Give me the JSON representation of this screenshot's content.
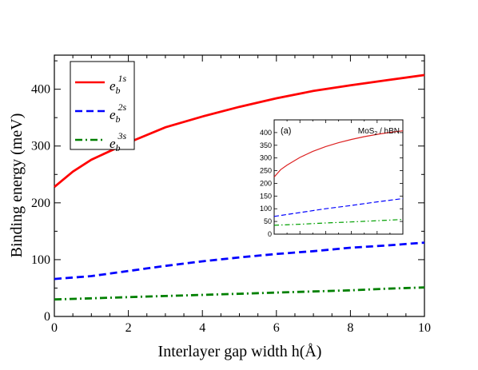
{
  "chart_data": [
    {
      "type": "line",
      "xlabel": "Interlayer gap width h(Å)",
      "ylabel": "Binding energy (meV)",
      "xlim": [
        0,
        10
      ],
      "ylim": [
        0,
        460
      ],
      "xticks": [
        0,
        2,
        4,
        6,
        8,
        10
      ],
      "yticks": [
        0,
        100,
        200,
        300,
        400
      ],
      "legend": "top-left",
      "grid": false,
      "series": [
        {
          "name": "e_b^1s",
          "base": "e",
          "sub": "b",
          "sup": "1s",
          "color": "#ff0000",
          "style": "solid",
          "x": [
            0,
            0.5,
            1,
            2,
            3,
            4,
            5,
            6,
            7,
            8,
            9,
            10
          ],
          "y": [
            228,
            255,
            276,
            306,
            333,
            352,
            369,
            384,
            397,
            407,
            416,
            425
          ]
        },
        {
          "name": "e_b^2s",
          "base": "e",
          "sub": "b",
          "sup": "2s",
          "color": "#0000ff",
          "style": "dashed",
          "x": [
            0,
            1,
            2,
            3,
            4,
            5,
            6,
            7,
            8,
            9,
            10
          ],
          "y": [
            66,
            71,
            80,
            89,
            97,
            104,
            110,
            115,
            121,
            125,
            130
          ]
        },
        {
          "name": "e_b^3s",
          "base": "e",
          "sub": "b",
          "sup": "3s",
          "color": "#008000",
          "style": "dashdot",
          "x": [
            0,
            1,
            2,
            3,
            4,
            5,
            6,
            7,
            8,
            9,
            10
          ],
          "y": [
            30,
            32,
            34,
            36,
            38,
            40,
            42,
            44,
            46,
            49,
            51
          ]
        }
      ]
    },
    {
      "type": "line",
      "annotation": "(a)",
      "label": "MoS2 / hBN",
      "xlim": [
        0,
        10
      ],
      "ylim": [
        0,
        450
      ],
      "yticks": [
        0,
        50,
        100,
        150,
        200,
        250,
        300,
        350,
        400
      ],
      "series": [
        {
          "color": "#dd2222",
          "style": "solid",
          "x": [
            0,
            0.5,
            1,
            2,
            3,
            4,
            5,
            6,
            7,
            8,
            9,
            10
          ],
          "y": [
            225,
            254,
            272,
            302,
            326,
            345,
            360,
            373,
            384,
            393,
            401,
            407
          ]
        },
        {
          "color": "#0000ff",
          "style": "dashed",
          "x": [
            0,
            2,
            4,
            6,
            8,
            10
          ],
          "y": [
            70,
            85,
            100,
            113,
            127,
            140
          ]
        },
        {
          "color": "#00a000",
          "style": "dashdot",
          "x": [
            0,
            2,
            4,
            6,
            8,
            10
          ],
          "y": [
            35,
            39,
            44,
            48,
            53,
            58
          ]
        }
      ]
    }
  ]
}
